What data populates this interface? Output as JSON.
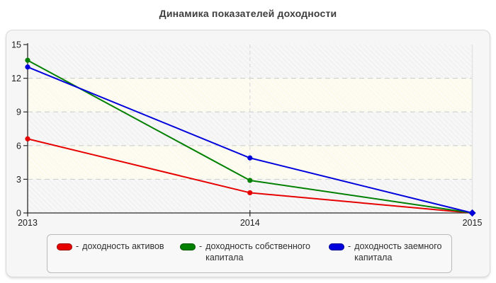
{
  "title": "Динамика показателей доходности",
  "chart_data": {
    "type": "line",
    "x": [
      2013,
      2014,
      2015
    ],
    "xticklabels": [
      "2013",
      "2014",
      "2015"
    ],
    "yticks": [
      0,
      3,
      6,
      9,
      12,
      15
    ],
    "ylim": [
      0,
      15
    ],
    "grid": "horizontal dashed at 3,6,9,12; vertical dashed at 2014; hatched alternating bands",
    "legend_position": "bottom",
    "series": [
      {
        "name": "доходность активов",
        "color": "#e60000",
        "values": [
          6.6,
          1.8,
          0
        ]
      },
      {
        "name": "доходность собственного капитала",
        "color": "#008000",
        "values": [
          13.6,
          2.9,
          0
        ]
      },
      {
        "name": "доходность заемного капитала",
        "color": "#0000dd",
        "values": [
          13.0,
          4.9,
          0
        ]
      }
    ]
  },
  "legend": {
    "prefix": "-"
  },
  "colors": {
    "panel_bg": "#f6f6f6",
    "band_gray": "#f3f3f3",
    "band_ivory": "#fbfaec",
    "grid": "#cfcfcf",
    "axis": "#2b2b2b",
    "tick_text": "#1f1f1f"
  }
}
